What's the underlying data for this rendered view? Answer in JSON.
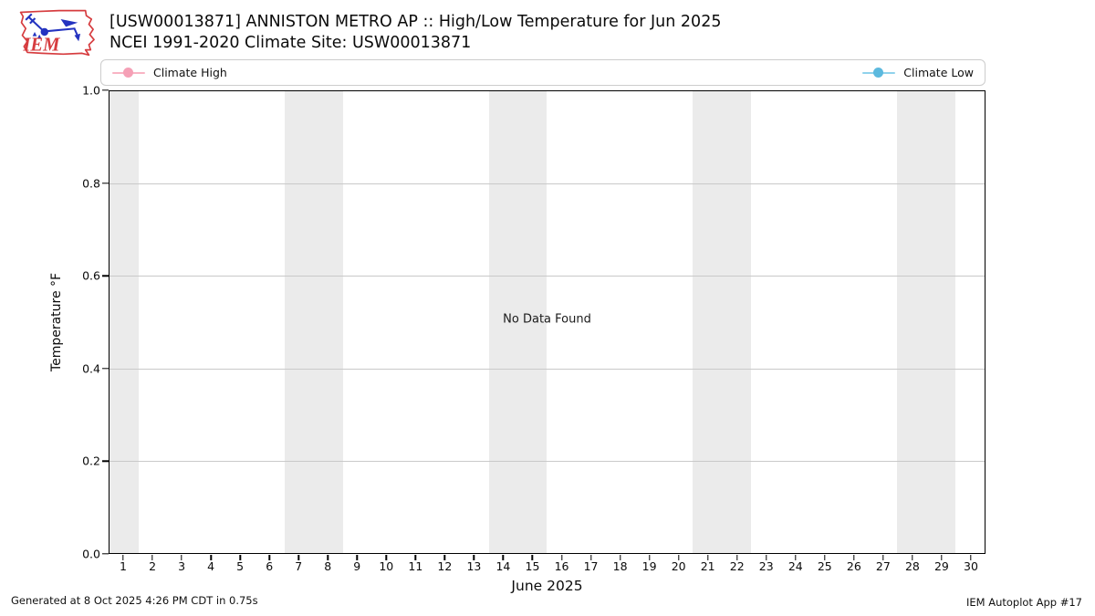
{
  "logo": {
    "text": "IEM"
  },
  "header": {
    "title": "[USW00013871] ANNISTON METRO AP :: High/Low Temperature for Jun 2025",
    "subtitle": "NCEI 1991-2020 Climate Site: USW00013871"
  },
  "legend": {
    "items": [
      {
        "label": "Climate High",
        "line_color": "#f9b4c4",
        "marker_color": "#f5a0b6"
      },
      {
        "label": "Climate Low",
        "line_color": "#8fd2ec",
        "marker_color": "#5cb9de"
      }
    ]
  },
  "chart_data": {
    "type": "line",
    "title": "[USW00013871] ANNISTON METRO AP :: High/Low Temperature for Jun 2025",
    "subtitle": "NCEI 1991-2020 Climate Site: USW00013871",
    "xlabel": "June 2025",
    "ylabel": "Temperature °F",
    "xlim": [
      0.5,
      30.5
    ],
    "ylim": [
      0.0,
      1.0
    ],
    "x_ticks": [
      1,
      2,
      3,
      4,
      5,
      6,
      7,
      8,
      9,
      10,
      11,
      12,
      13,
      14,
      15,
      16,
      17,
      18,
      19,
      20,
      21,
      22,
      23,
      24,
      25,
      26,
      27,
      28,
      29,
      30
    ],
    "y_ticks": [
      1.0,
      0.8,
      0.6,
      0.4,
      0.2,
      0.0
    ],
    "y_tick_labels": [
      "1.0",
      "0.8",
      "0.6",
      "0.4",
      "0.2",
      "0.0"
    ],
    "grid": "horizontal",
    "gridline_values": [
      0.8,
      0.6,
      0.4,
      0.2
    ],
    "weekend_bands": [
      [
        0.5,
        1.5
      ],
      [
        6.5,
        8.5
      ],
      [
        13.5,
        15.5
      ],
      [
        20.5,
        22.5
      ],
      [
        27.5,
        29.5
      ]
    ],
    "band_color": "#ebebeb",
    "series": [
      {
        "name": "Climate High",
        "color": "#f9b4c4",
        "values": []
      },
      {
        "name": "Climate Low",
        "color": "#8fd2ec",
        "values": []
      }
    ],
    "annotation": "No Data Found",
    "legend_position": "top-expanded"
  },
  "footer": {
    "left": "Generated at 8 Oct 2025 4:26 PM CDT in 0.75s",
    "right": "IEM Autoplot App #17"
  }
}
